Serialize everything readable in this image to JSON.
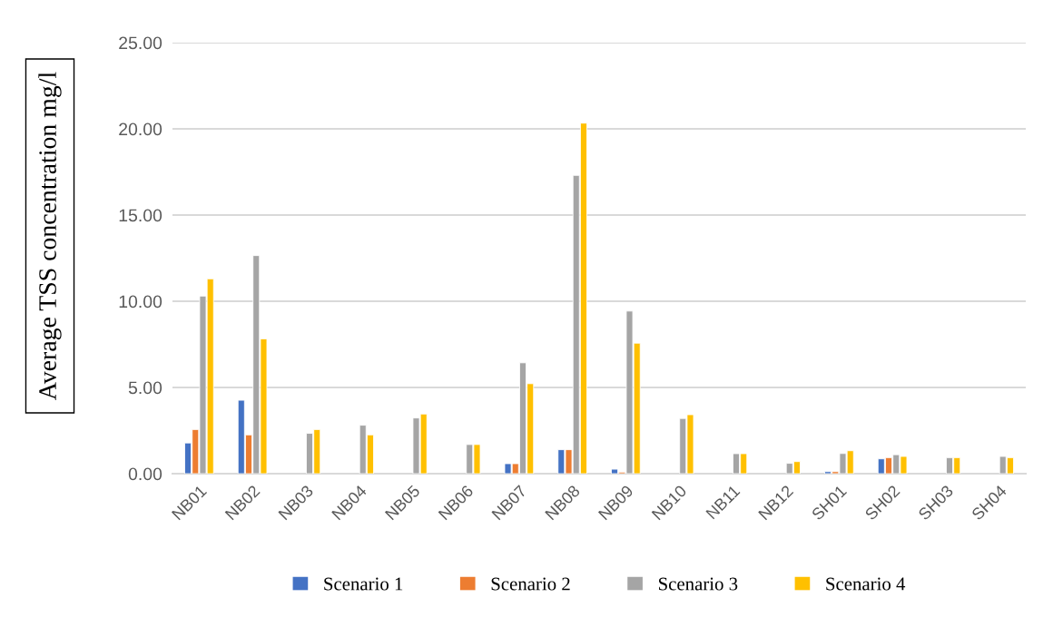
{
  "chart_data": {
    "type": "bar",
    "ylabel": "Average TSS concentration mg/l",
    "categories": [
      "NB01",
      "NB02",
      "NB03",
      "NB04",
      "NB05",
      "NB06",
      "NB07",
      "NB08",
      "NB09",
      "NB10",
      "NB11",
      "NB12",
      "SH01",
      "SH02",
      "SH03",
      "SH04"
    ],
    "series": [
      {
        "name": "Scenario 1",
        "color": "#4472c4",
        "values": [
          1.78,
          4.26,
          null,
          null,
          null,
          null,
          0.58,
          1.39,
          0.26,
          null,
          null,
          null,
          0.12,
          0.86,
          null,
          null
        ]
      },
      {
        "name": "Scenario 2",
        "color": "#ed7d31",
        "values": [
          2.56,
          2.25,
          null,
          null,
          null,
          null,
          0.58,
          1.39,
          0.09,
          null,
          null,
          null,
          0.12,
          0.93,
          null,
          null
        ]
      },
      {
        "name": "Scenario 3",
        "color": "#a5a5a5",
        "values": [
          10.3,
          12.65,
          2.34,
          2.81,
          3.23,
          1.69,
          6.43,
          17.3,
          9.43,
          3.2,
          1.16,
          0.6,
          1.17,
          1.1,
          0.93,
          1.0
        ]
      },
      {
        "name": "Scenario 4",
        "color": "#ffc000",
        "values": [
          11.3,
          7.82,
          2.56,
          2.25,
          3.46,
          1.69,
          5.22,
          20.33,
          7.57,
          3.42,
          1.16,
          0.7,
          1.33,
          1.0,
          0.93,
          0.93
        ]
      }
    ],
    "ylim": [
      0,
      25
    ],
    "yticks": [
      {
        "value": 0,
        "label": "0.00"
      },
      {
        "value": 5,
        "label": "5.00"
      },
      {
        "value": 10,
        "label": "10.00"
      },
      {
        "value": 15,
        "label": "15.00"
      },
      {
        "value": 20,
        "label": "20.00"
      },
      {
        "value": 25,
        "label": "25.00"
      }
    ],
    "grid": "y",
    "legend": "bottom"
  }
}
